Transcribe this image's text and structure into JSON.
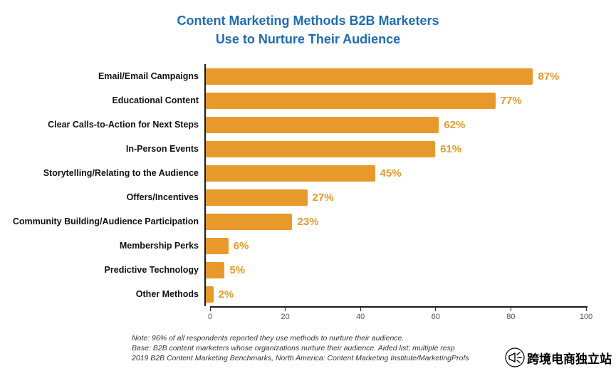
{
  "title": {
    "line1": "Content Marketing Methods B2B Marketers",
    "line2": "Use to Nurture Their Audience"
  },
  "chart_data": {
    "type": "bar",
    "orientation": "horizontal",
    "title": "Content Marketing Methods B2B Marketers Use to Nurture Their Audience",
    "categories": [
      "Email/Email Campaigns",
      "Educational Content",
      "Clear Calls-to-Action for Next Steps",
      "In-Person Events",
      "Storytelling/Relating to the Audience",
      "Offers/Incentives",
      "Community Building/Audience Participation",
      "Membership Perks",
      "Predictive Technology",
      "Other Methods"
    ],
    "values": [
      87,
      77,
      62,
      61,
      45,
      27,
      23,
      6,
      5,
      2
    ],
    "value_suffix": "%",
    "xlim": [
      0,
      100
    ],
    "x_ticks": [
      0,
      20,
      40,
      60,
      80,
      100
    ],
    "bar_color": "#e8992c",
    "title_color": "#1e6cb5",
    "grid": false,
    "legend": "none"
  },
  "notes": {
    "line1": "Note: 96% of all respondents reported they use methods to nurture their audience.",
    "line2": "Base: B2B content marketers whose organizations nurture their audience. Aided list; multiple resp",
    "line3": "2019 B2B Content Marketing Benchmarks, North America: Content Marketing Institute/MarketingProfs"
  },
  "watermark": {
    "text": "跨境电商独立站",
    "icon": "loudspeaker-icon"
  }
}
